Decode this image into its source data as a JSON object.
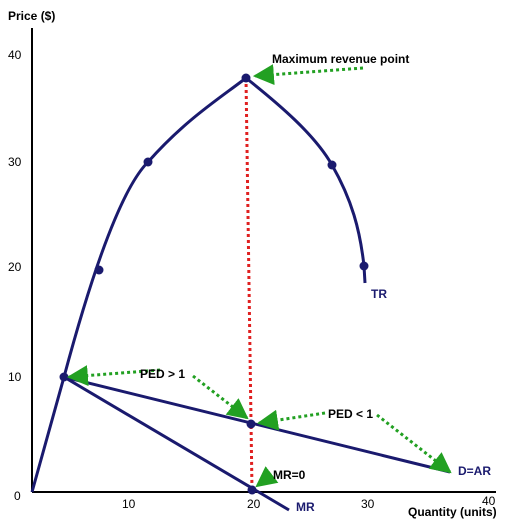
{
  "chart_data": {
    "type": "line",
    "xlabel": "Quantity (units)",
    "ylabel": "Price ($)",
    "xlim": [
      0,
      40
    ],
    "ylim": [
      0,
      40
    ],
    "x_ticks": [
      "10",
      "20",
      "30",
      "40"
    ],
    "y_ticks": [
      "10",
      "20",
      "30",
      "40"
    ],
    "origin_label": "0",
    "grid": false,
    "colors": {
      "curves": "#1a1a6e",
      "markers": "#1a1a6e",
      "arrows": "#22a022",
      "dotted_line": "#e02020"
    },
    "series": [
      {
        "name": "TR",
        "points": [
          [
            0,
            0
          ],
          [
            5.5,
            10
          ],
          [
            11.5,
            30
          ],
          [
            20,
            37.5
          ],
          [
            26,
            36
          ],
          [
            31,
            29.5
          ],
          [
            33.2,
            24
          ],
          [
            34.3,
            20
          ],
          [
            34.3,
            19
          ]
        ],
        "markers": [
          [
            5.5,
            10
          ],
          [
            11.5,
            30
          ],
          [
            20,
            37.5
          ],
          [
            30.5,
            29.5
          ],
          [
            34.3,
            20
          ]
        ]
      },
      {
        "name": "D=AR",
        "points": [
          [
            5.5,
            10
          ],
          [
            20,
            5.7
          ],
          [
            37.5,
            1.3
          ]
        ],
        "markers": [
          [
            20,
            5.7
          ]
        ]
      },
      {
        "name": "MR",
        "points": [
          [
            5.5,
            10
          ],
          [
            20,
            0
          ],
          [
            22.5,
            -1.8
          ]
        ],
        "markers": [
          [
            20,
            0
          ]
        ]
      }
    ],
    "annotations": [
      {
        "text": "Maximum revenue point",
        "x": 20,
        "y": 37.5
      },
      {
        "text": "PED > 1",
        "x": 5.5,
        "y": 10
      },
      {
        "text": "PED < 1",
        "x": 20,
        "y": 5.7
      },
      {
        "text": "MR=0",
        "x": 20,
        "y": 0
      }
    ]
  }
}
